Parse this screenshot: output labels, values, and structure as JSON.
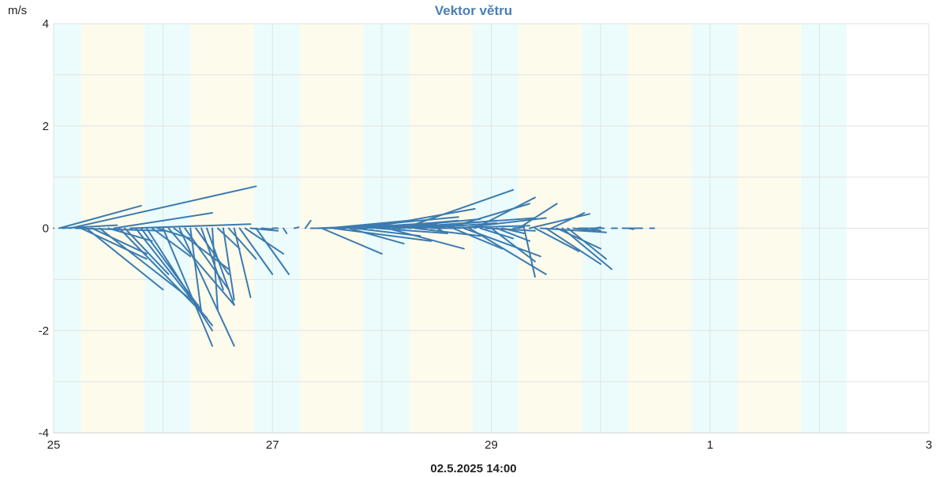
{
  "chart_data": {
    "type": "line",
    "title": "Vektor větru",
    "ylabel": "m/s",
    "timestamp": "02.5.2025 14:00",
    "ylim": [
      -4,
      4
    ],
    "yticks": [
      -4,
      -2,
      0,
      2,
      4
    ],
    "x_ticks": [
      "25",
      "27",
      "29",
      "1",
      "3"
    ],
    "x_range_days": [
      0,
      8
    ],
    "grid": true,
    "colors": {
      "vector": "#3b7bb0",
      "night": "#ecfcfc",
      "day": "#fdfbec",
      "grid": "#e2e2e2"
    },
    "day_bands": [
      [
        0.25,
        0.83
      ],
      [
        1.25,
        1.83
      ],
      [
        2.25,
        2.83
      ],
      [
        3.25,
        3.83
      ],
      [
        4.25,
        4.83
      ],
      [
        5.25,
        5.83
      ],
      [
        6.25,
        6.83
      ]
    ],
    "night_bands": [
      [
        0.0,
        0.25
      ],
      [
        0.83,
        1.25
      ],
      [
        1.83,
        2.25
      ],
      [
        2.83,
        3.25
      ],
      [
        3.83,
        4.25
      ],
      [
        4.83,
        5.25
      ],
      [
        5.83,
        6.25
      ],
      [
        6.83,
        7.25
      ]
    ],
    "series": [
      {
        "vectors": [
          {
            "t": 0.0,
            "u": 0.0,
            "v": 0.0
          },
          {
            "t": 0.05,
            "u": 0.75,
            "v": 0.44
          },
          {
            "t": 0.08,
            "u": 0.5,
            "v": 0.06
          },
          {
            "t": 0.15,
            "u": 1.7,
            "v": 0.82
          },
          {
            "t": 0.2,
            "u": 0.8,
            "v": -0.05
          },
          {
            "t": 0.25,
            "u": 0.6,
            "v": -0.6
          },
          {
            "t": 0.3,
            "u": 0.7,
            "v": -1.2
          },
          {
            "t": 0.35,
            "u": 0.5,
            "v": -0.5
          },
          {
            "t": 0.42,
            "u": 0.9,
            "v": -1.5
          },
          {
            "t": 0.5,
            "u": 0.4,
            "v": -0.25
          },
          {
            "t": 0.55,
            "u": 0.9,
            "v": 0.3
          },
          {
            "t": 0.6,
            "u": 0.8,
            "v": -1.75
          },
          {
            "t": 0.65,
            "u": 0.4,
            "v": -0.9
          },
          {
            "t": 0.7,
            "u": 1.1,
            "v": 0.08
          },
          {
            "t": 0.75,
            "u": 0.7,
            "v": -1.9
          },
          {
            "t": 0.8,
            "u": 0.55,
            "v": -1.6
          },
          {
            "t": 0.85,
            "u": 0.6,
            "v": -2.0
          },
          {
            "t": 0.9,
            "u": 0.35,
            "v": -0.55
          },
          {
            "t": 0.95,
            "u": 0.3,
            "v": -0.2
          },
          {
            "t": 1.0,
            "u": 0.45,
            "v": -2.3
          },
          {
            "t": 1.05,
            "u": 0.6,
            "v": -1.5
          },
          {
            "t": 1.1,
            "u": 0.5,
            "v": -0.8
          },
          {
            "t": 1.15,
            "u": 0.5,
            "v": -2.3
          },
          {
            "t": 1.2,
            "u": 0.4,
            "v": -1.2
          },
          {
            "t": 1.25,
            "u": 0.1,
            "v": -1.65
          },
          {
            "t": 1.3,
            "u": 0.3,
            "v": -0.9
          },
          {
            "t": 1.35,
            "u": 0.2,
            "v": -1.2
          },
          {
            "t": 1.4,
            "u": 0.25,
            "v": -1.5
          },
          {
            "t": 1.45,
            "u": 0.05,
            "v": -1.6
          },
          {
            "t": 1.5,
            "u": 0.2,
            "v": -0.4
          },
          {
            "t": 1.55,
            "u": 0.1,
            "v": -1.4
          },
          {
            "t": 1.6,
            "u": 0.25,
            "v": -0.6
          },
          {
            "t": 1.65,
            "u": 0.15,
            "v": -1.35
          },
          {
            "t": 1.7,
            "u": 0.3,
            "v": -0.9
          },
          {
            "t": 1.75,
            "u": 0.35,
            "v": -0.5
          },
          {
            "t": 1.8,
            "u": 0.25,
            "v": -0.05
          },
          {
            "t": 1.85,
            "u": 0.3,
            "v": -0.9
          },
          {
            "t": 1.9,
            "u": 0.1,
            "v": -0.02
          },
          {
            "t": 2.0,
            "u": 0.05,
            "v": 0.0
          },
          {
            "t": 2.1,
            "u": 0.03,
            "v": -0.1
          },
          {
            "t": 2.2,
            "u": 0.04,
            "v": 0.02
          },
          {
            "t": 2.3,
            "u": 0.05,
            "v": 0.15
          },
          {
            "t": 2.35,
            "u": 0.3,
            "v": 0.0
          },
          {
            "t": 2.4,
            "u": 0.6,
            "v": 0.05
          },
          {
            "t": 2.45,
            "u": 0.55,
            "v": -0.5
          },
          {
            "t": 2.5,
            "u": 0.75,
            "v": 0.15
          },
          {
            "t": 2.55,
            "u": 0.9,
            "v": -0.25
          },
          {
            "t": 2.6,
            "u": 1.1,
            "v": 0.22
          },
          {
            "t": 2.65,
            "u": 0.8,
            "v": 0.1
          },
          {
            "t": 2.7,
            "u": 0.5,
            "v": -0.3
          },
          {
            "t": 2.75,
            "u": 0.6,
            "v": -0.15
          },
          {
            "t": 2.8,
            "u": 0.7,
            "v": 0.08
          },
          {
            "t": 2.85,
            "u": 1.0,
            "v": 0.38
          },
          {
            "t": 2.9,
            "u": 0.8,
            "v": 0.15
          },
          {
            "t": 2.95,
            "u": 0.65,
            "v": -0.1
          },
          {
            "t": 3.0,
            "u": 0.9,
            "v": 0.18
          },
          {
            "t": 3.05,
            "u": 0.7,
            "v": -0.4
          },
          {
            "t": 3.1,
            "u": 1.3,
            "v": 0.2
          },
          {
            "t": 3.15,
            "u": 0.6,
            "v": 0.05
          },
          {
            "t": 3.2,
            "u": 1.0,
            "v": 0.75
          },
          {
            "t": 3.25,
            "u": 0.8,
            "v": 0.15
          },
          {
            "t": 3.3,
            "u": 0.6,
            "v": -0.15
          },
          {
            "t": 3.35,
            "u": 0.7,
            "v": 0.1
          },
          {
            "t": 3.45,
            "u": 0.2,
            "v": 0.0
          },
          {
            "t": 3.5,
            "u": 0.05,
            "v": -0.05
          },
          {
            "t": 3.55,
            "u": 0.8,
            "v": 0.05
          },
          {
            "t": 3.6,
            "u": 0.75,
            "v": 0.48
          },
          {
            "t": 3.65,
            "u": 0.45,
            "v": -0.4
          },
          {
            "t": 3.7,
            "u": 0.8,
            "v": 0.2
          },
          {
            "t": 3.75,
            "u": 0.7,
            "v": -0.55
          },
          {
            "t": 3.8,
            "u": 0.7,
            "v": -0.9
          },
          {
            "t": 3.85,
            "u": 0.55,
            "v": 0.6
          },
          {
            "t": 3.9,
            "u": 0.3,
            "v": -0.2
          },
          {
            "t": 3.95,
            "u": 0.45,
            "v": -0.05
          },
          {
            "t": 4.0,
            "u": 0.4,
            "v": -0.65
          },
          {
            "t": 4.05,
            "u": 0.3,
            "v": -0.25
          },
          {
            "t": 4.1,
            "u": 0.2,
            "v": -0.1
          },
          {
            "t": 4.2,
            "u": 0.1,
            "v": 0.02
          },
          {
            "t": 4.25,
            "u": 0.35,
            "v": 0.48
          },
          {
            "t": 4.3,
            "u": 0.1,
            "v": -0.95
          },
          {
            "t": 4.35,
            "u": 0.55,
            "v": 0.28
          },
          {
            "t": 4.4,
            "u": 0.4,
            "v": -0.45
          },
          {
            "t": 4.45,
            "u": 0.6,
            "v": -0.08
          },
          {
            "t": 4.5,
            "u": 0.5,
            "v": -0.7
          },
          {
            "t": 4.55,
            "u": 0.3,
            "v": 0.3
          },
          {
            "t": 4.6,
            "u": 0.4,
            "v": -0.4
          },
          {
            "t": 4.65,
            "u": 0.45,
            "v": -0.8
          },
          {
            "t": 4.7,
            "u": 0.35,
            "v": -0.6
          },
          {
            "t": 4.75,
            "u": 0.2,
            "v": -0.05
          },
          {
            "t": 4.8,
            "u": 0.2,
            "v": 0.0
          },
          {
            "t": 4.9,
            "u": 0.1,
            "v": -0.05
          },
          {
            "t": 4.95,
            "u": 0.05,
            "v": 0.02
          },
          {
            "t": 5.0,
            "u": 0.03,
            "v": 0.0
          },
          {
            "t": 5.1,
            "u": 0.05,
            "v": 0.0
          },
          {
            "t": 5.2,
            "u": 0.1,
            "v": 0.0
          },
          {
            "t": 5.25,
            "u": 0.05,
            "v": -0.02
          },
          {
            "t": 5.3,
            "u": 0.08,
            "v": 0.0
          },
          {
            "t": 5.35,
            "u": 0.03,
            "v": 0.0
          },
          {
            "t": 5.45,
            "u": 0.04,
            "v": 0.0
          }
        ]
      }
    ]
  }
}
